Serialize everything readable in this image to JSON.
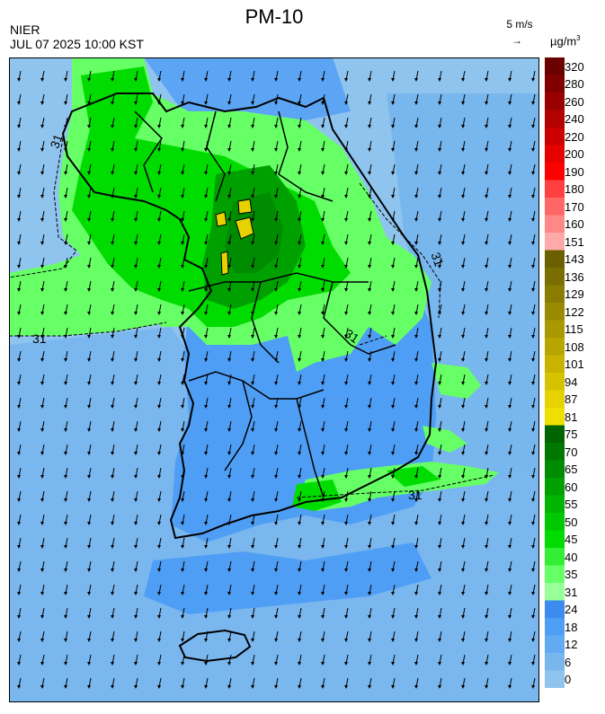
{
  "header": {
    "title": "PM-10",
    "org": "NIER",
    "datetime": "JUL 07 2025 10:00 KST",
    "wind_ref": "5 m/s",
    "wind_arrow": "→",
    "unit": "µg/m",
    "unit_sup": "3"
  },
  "legend": {
    "ticks": [
      "320",
      "280",
      "260",
      "240",
      "220",
      "200",
      "190",
      "180",
      "170",
      "160",
      "151",
      "143",
      "136",
      "129",
      "122",
      "115",
      "108",
      "101",
      "94",
      "87",
      "81",
      "75",
      "70",
      "65",
      "60",
      "55",
      "50",
      "45",
      "40",
      "35",
      "31",
      "24",
      "18",
      "12",
      "6",
      "0"
    ],
    "colors": [
      "#6b0000",
      "#800000",
      "#990000",
      "#b30000",
      "#cc0000",
      "#e60000",
      "#ff0000",
      "#ff4040",
      "#ff6666",
      "#ff8888",
      "#ffaaaa",
      "#6b6000",
      "#7a6e00",
      "#8a7c00",
      "#998a00",
      "#a99800",
      "#b8a600",
      "#c8b400",
      "#d6c300",
      "#e6d200",
      "#f0e000",
      "#006400",
      "#007800",
      "#008c00",
      "#00a000",
      "#00b400",
      "#00c800",
      "#00dc00",
      "#33ee33",
      "#66ff66",
      "#99ff99",
      "#3c8cf0",
      "#4f9ef5",
      "#62aaf2",
      "#78b6ee",
      "#8fc4ee"
    ]
  },
  "map": {
    "contour_label": "31",
    "colors": {
      "sea_light": "#8fc4ee",
      "sea_mid": "#78b6ee",
      "land_blue": "#4f9ef5",
      "green_light": "#66ff66",
      "green": "#00dc00",
      "green_dark": "#00a000",
      "green_darker": "#008c00",
      "yellow": "#e6d200"
    }
  }
}
